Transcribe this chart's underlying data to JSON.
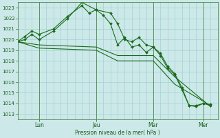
{
  "xlabel": "Pression niveau de la mer( hPa )",
  "bg_color": "#cce8e8",
  "grid_color": "#99cccc",
  "line_color": "#1a6b1a",
  "ylim": [
    1012.5,
    1023.5
  ],
  "yticks": [
    1013,
    1014,
    1015,
    1016,
    1017,
    1018,
    1019,
    1020,
    1021,
    1022,
    1023
  ],
  "xlim": [
    0,
    14
  ],
  "vlines": [
    1.5,
    5.5,
    9.5,
    13.0
  ],
  "xtick_positions": [
    1.5,
    5.5,
    9.5,
    13.0
  ],
  "xtick_labels": [
    "Lun",
    "Jeu",
    "Mar",
    "Mer"
  ],
  "series_with_markers": [
    {
      "x": [
        0,
        0.5,
        1.0,
        1.5,
        2.5,
        3.5,
        4.5,
        5.5,
        6.5,
        7.0,
        7.5,
        8.0,
        8.5,
        9.0,
        9.5,
        10.0,
        10.5,
        11.0,
        11.5,
        12.0,
        12.5,
        13.0,
        13.5
      ],
      "y": [
        1019.8,
        1020.0,
        1020.5,
        1020.0,
        1020.8,
        1022.0,
        1023.5,
        1022.8,
        1022.5,
        1021.5,
        1020.0,
        1019.8,
        1020.2,
        1019.5,
        1019.3,
        1018.7,
        1017.5,
        1016.8,
        1015.5,
        1013.8,
        1013.8,
        1014.0,
        1013.9
      ]
    },
    {
      "x": [
        0,
        0.5,
        1.0,
        1.5,
        2.5,
        3.5,
        4.5,
        5.0,
        5.5,
        6.0,
        6.5,
        7.0,
        7.5,
        8.0,
        8.5,
        9.0,
        9.5,
        10.0,
        10.5,
        11.0,
        11.5,
        12.0,
        12.5,
        13.0,
        13.5
      ],
      "y": [
        1019.8,
        1020.3,
        1020.8,
        1020.5,
        1021.0,
        1022.2,
        1023.2,
        1022.5,
        1022.8,
        1022.3,
        1021.5,
        1019.5,
        1020.2,
        1019.3,
        1019.5,
        1018.8,
        1019.3,
        1018.5,
        1017.3,
        1016.7,
        1015.3,
        1013.8,
        1013.7,
        1014.0,
        1013.8
      ]
    }
  ],
  "series_plain": [
    {
      "x": [
        0,
        1.5,
        5.5,
        7.0,
        9.5,
        11.0,
        13.5
      ],
      "y": [
        1019.8,
        1019.5,
        1019.3,
        1018.5,
        1018.5,
        1016.5,
        1013.7
      ]
    },
    {
      "x": [
        0,
        1.5,
        5.5,
        7.0,
        9.5,
        11.0,
        13.5
      ],
      "y": [
        1019.8,
        1019.2,
        1019.0,
        1018.0,
        1018.0,
        1015.8,
        1013.8
      ]
    }
  ]
}
